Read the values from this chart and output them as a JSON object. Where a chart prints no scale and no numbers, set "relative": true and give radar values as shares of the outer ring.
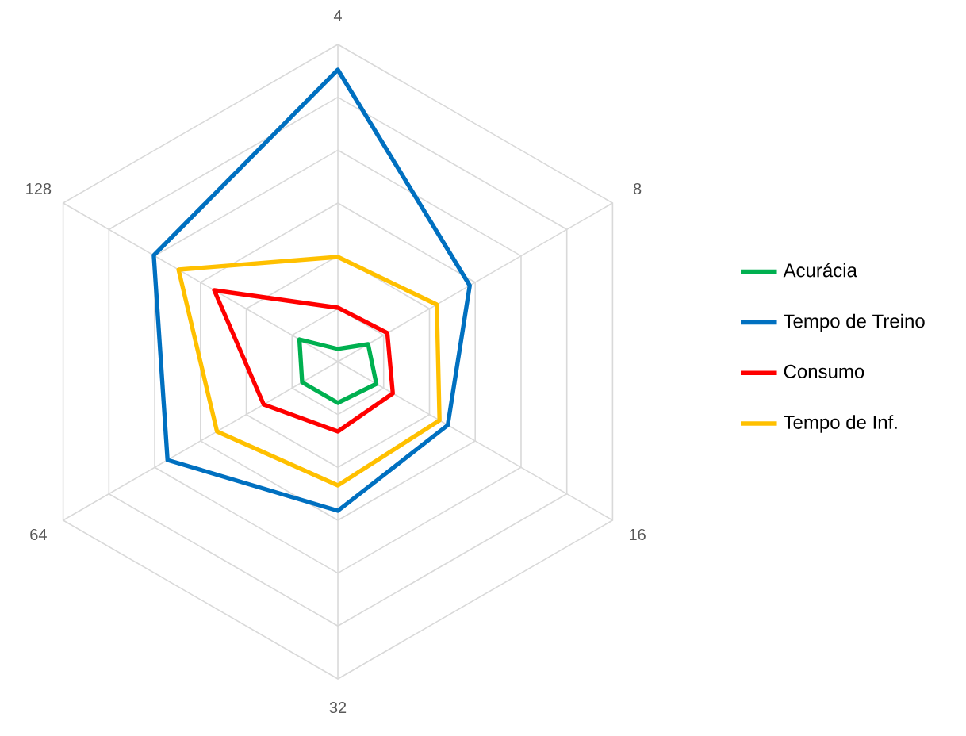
{
  "chart_data": {
    "type": "radar",
    "relative": true,
    "grid": true,
    "legend": "right",
    "categories": [
      "4",
      "8",
      "16",
      "32",
      "64",
      "128"
    ],
    "series": [
      {
        "name": "Acurácia",
        "color": "#00b050",
        "values": [
          0.04,
          0.11,
          0.14,
          0.13,
          0.13,
          0.14
        ]
      },
      {
        "name": "Tempo de Treino",
        "color": "#0070c0",
        "values": [
          0.92,
          0.48,
          0.4,
          0.47,
          0.62,
          0.67
        ]
      },
      {
        "name": "Consumo",
        "color": "#ff0000",
        "values": [
          0.17,
          0.18,
          0.2,
          0.22,
          0.27,
          0.45
        ]
      },
      {
        "name": "Tempo de Inf.",
        "color": "#ffc000",
        "values": [
          0.33,
          0.36,
          0.37,
          0.39,
          0.44,
          0.58
        ]
      }
    ]
  }
}
